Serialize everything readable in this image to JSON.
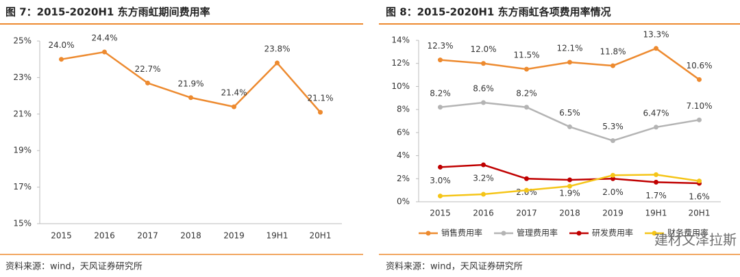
{
  "chart_data": [
    {
      "type": "line",
      "title": "图 7：2015-2020H1 东方雨虹期间费用率",
      "source": "资料来源：wind，天风证券研究所",
      "categories": [
        "2015",
        "2016",
        "2017",
        "2018",
        "2019",
        "19H1",
        "20H1"
      ],
      "series": [
        {
          "name": "期间费用率",
          "color": "#ed8a2f",
          "label_position": "above",
          "values": [
            24.0,
            24.4,
            22.7,
            21.9,
            21.4,
            23.8,
            21.1
          ],
          "value_labels": [
            "24.0%",
            "24.4%",
            "22.7%",
            "21.9%",
            "21.4%",
            "23.8%",
            "21.1%"
          ]
        }
      ],
      "ylim": [
        15,
        25
      ],
      "yticks": [
        {
          "value": 15,
          "label": "15%"
        },
        {
          "value": 17,
          "label": "17%"
        },
        {
          "value": 19,
          "label": "19%"
        },
        {
          "value": 21,
          "label": "21%"
        },
        {
          "value": 23,
          "label": "23%"
        },
        {
          "value": 25,
          "label": "25%"
        }
      ],
      "legend": false
    },
    {
      "type": "line",
      "title": "图 8：2015-2020H1 东方雨虹各项费用率情况",
      "source": "资料来源：wind，天风证券研究所",
      "watermark": "建材文泽拉斯",
      "categories": [
        "2015",
        "2016",
        "2017",
        "2018",
        "2019",
        "19H1",
        "20H1"
      ],
      "series": [
        {
          "name": "销售费用率",
          "color": "#ed8a2f",
          "label_position": "above",
          "values": [
            12.3,
            12.0,
            11.5,
            12.1,
            11.8,
            13.3,
            10.6
          ],
          "value_labels": [
            "12.3%",
            "12.0%",
            "11.5%",
            "12.1%",
            "11.8%",
            "13.3%",
            "10.6%"
          ]
        },
        {
          "name": "管理费用率",
          "color": "#b4b4b4",
          "label_position": "above",
          "values": [
            8.2,
            8.6,
            8.2,
            6.5,
            5.3,
            6.47,
            7.1
          ],
          "value_labels": [
            "8.2%",
            "8.6%",
            "8.2%",
            "6.5%",
            "5.3%",
            "6.47%",
            "7.10%"
          ]
        },
        {
          "name": "研发费用率",
          "color": "#c00000",
          "label_position": "below",
          "values": [
            3.0,
            3.2,
            2.0,
            1.9,
            2.0,
            1.7,
            1.6
          ],
          "value_labels": [
            "3.0%",
            "3.2%",
            "2.0%",
            "1.9%",
            "2.0%",
            "1.7%",
            "1.6%"
          ]
        },
        {
          "name": "财务费用率",
          "color": "#f5c518",
          "values": [
            0.5,
            0.65,
            1.0,
            1.35,
            2.3,
            2.35,
            1.8
          ]
        }
      ],
      "ylim": [
        0,
        14
      ],
      "yticks": [
        {
          "value": 0,
          "label": "0%"
        },
        {
          "value": 2,
          "label": "2%"
        },
        {
          "value": 4,
          "label": "4%"
        },
        {
          "value": 6,
          "label": "6%"
        },
        {
          "value": 8,
          "label": "8%"
        },
        {
          "value": 10,
          "label": "10%"
        },
        {
          "value": 12,
          "label": "12%"
        },
        {
          "value": 14,
          "label": "14%"
        }
      ],
      "legend": true
    }
  ]
}
